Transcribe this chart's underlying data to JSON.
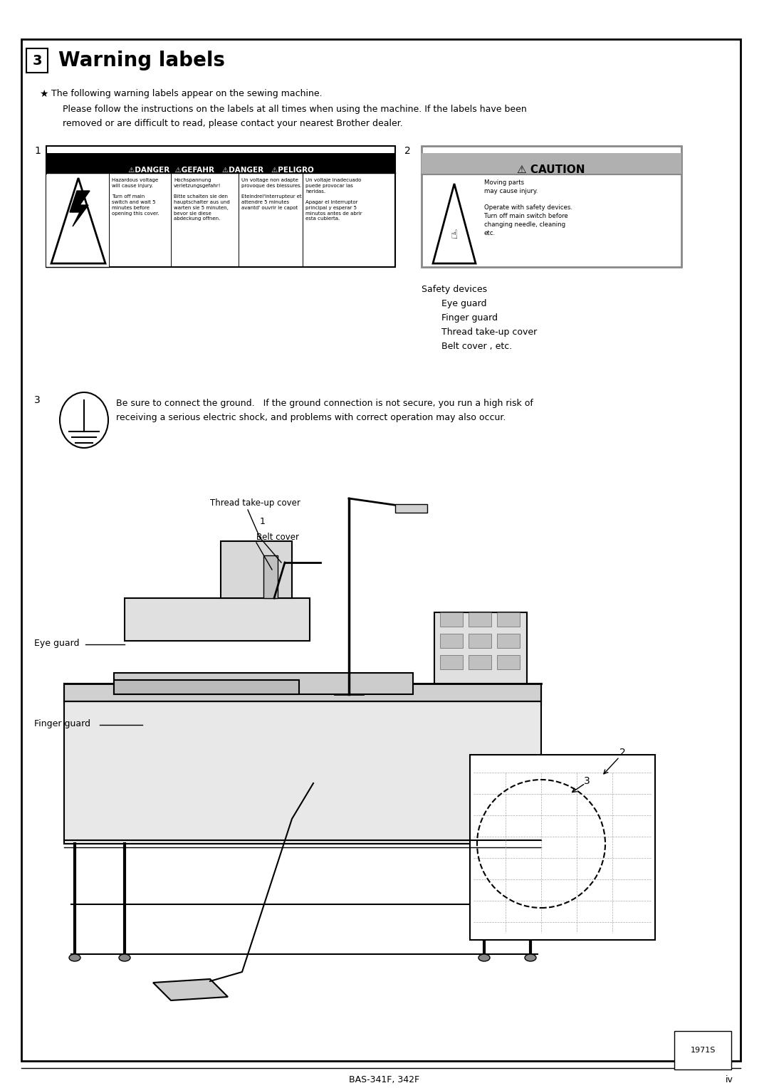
{
  "title_box_char": "3",
  "background_color": "#ffffff",
  "star_bullet": "★",
  "intro_line1": "The following warning labels appear on the sewing machine.",
  "intro_line2": "Please follow the instructions on the labels at all times when using the machine. If the labels have been",
  "intro_line3": "removed or are difficult to read, please contact your nearest Brother dealer.",
  "danger_col1": "Hazardous voltage\nwill cause injury.\n\nTurn off main\nswitch and wait 5\nminutes before\nopening this cover.",
  "danger_col2": "Hochspannung\nverletzungsgefahr!\n\nBitte schalten sie den\nhauptschalter aus und\nwarten sie 5 minuten,\nbevor sie diese\nabdeckung offnen.",
  "danger_col3": "Un voltage non adapte\nprovoque des blessures.\n\nEteindrel'interrupteur et\nattendre 5 minutes\navantd' ouvrir le capot",
  "danger_col4": "Un voltaje inadecuado\npuede provocar las\nheridas.\n\nApagar el interruptor\nprincipal y esperar 5\nminutos antes de abrir\nesta cubierta.",
  "caution_header": "⚠ CAUTION",
  "caution_text": "Moving parts\nmay cause injury.\n\nOperate with safety devices.\nTurn off main switch before\nchanging needle, cleaning\netc.",
  "safety_list": [
    "Safety devices",
    "Eye guard",
    "Finger guard",
    "Thread take-up cover",
    "Belt cover , etc."
  ],
  "ground_text1": "Be sure to connect the ground.   If the ground connection is not secure, you run a high risk of",
  "ground_text2": "receiving a serious electric shock, and problems with correct operation may also occur.",
  "footer_model": "BAS-341F, 342F",
  "footer_page": "iv",
  "footer_code": "1971S"
}
